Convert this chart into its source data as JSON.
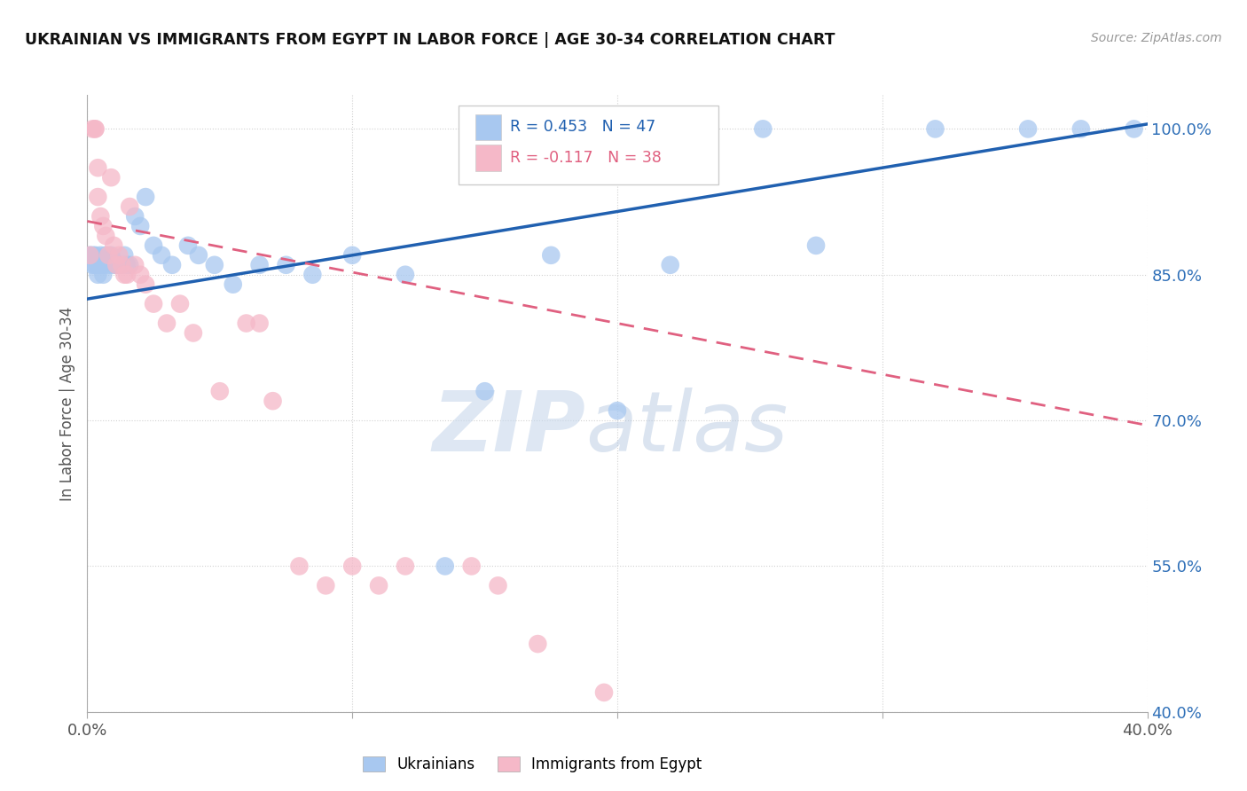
{
  "title": "UKRAINIAN VS IMMIGRANTS FROM EGYPT IN LABOR FORCE | AGE 30-34 CORRELATION CHART",
  "source": "Source: ZipAtlas.com",
  "ylabel": "In Labor Force | Age 30-34",
  "xlim": [
    0.0,
    0.4
  ],
  "ylim": [
    0.4,
    1.035
  ],
  "yticks": [
    0.4,
    0.55,
    0.7,
    0.85,
    1.0
  ],
  "ytick_labels": [
    "40.0%",
    "55.0%",
    "70.0%",
    "85.0%",
    "100.0%"
  ],
  "xticks": [
    0.0,
    0.1,
    0.2,
    0.3,
    0.4
  ],
  "xtick_labels": [
    "0.0%",
    "",
    "",
    "",
    "40.0%"
  ],
  "legend_blue_label": "Ukrainians",
  "legend_pink_label": "Immigrants from Egypt",
  "R_blue": 0.453,
  "N_blue": 47,
  "R_pink": -0.117,
  "N_pink": 38,
  "blue_color": "#a8c8f0",
  "pink_color": "#f5b8c8",
  "blue_line_color": "#2060b0",
  "pink_line_color": "#e06080",
  "watermark_zip": "ZIP",
  "watermark_atlas": "atlas",
  "blue_x": [
    0.001,
    0.002,
    0.002,
    0.003,
    0.003,
    0.004,
    0.004,
    0.005,
    0.005,
    0.006,
    0.006,
    0.007,
    0.008,
    0.009,
    0.01,
    0.011,
    0.012,
    0.013,
    0.014,
    0.015,
    0.016,
    0.018,
    0.02,
    0.022,
    0.025,
    0.028,
    0.032,
    0.038,
    0.042,
    0.048,
    0.055,
    0.065,
    0.075,
    0.085,
    0.1,
    0.12,
    0.135,
    0.15,
    0.175,
    0.2,
    0.22,
    0.255,
    0.275,
    0.32,
    0.355,
    0.375,
    0.395
  ],
  "blue_y": [
    0.87,
    0.87,
    0.86,
    0.87,
    0.86,
    0.86,
    0.85,
    0.87,
    0.86,
    0.86,
    0.85,
    0.87,
    0.86,
    0.87,
    0.86,
    0.86,
    0.86,
    0.86,
    0.87,
    0.86,
    0.86,
    0.91,
    0.9,
    0.93,
    0.88,
    0.87,
    0.86,
    0.88,
    0.87,
    0.86,
    0.84,
    0.86,
    0.86,
    0.85,
    0.87,
    0.85,
    0.55,
    0.73,
    0.87,
    0.71,
    0.86,
    1.0,
    0.88,
    1.0,
    1.0,
    1.0,
    1.0
  ],
  "pink_x": [
    0.001,
    0.002,
    0.003,
    0.003,
    0.004,
    0.004,
    0.005,
    0.006,
    0.007,
    0.008,
    0.009,
    0.01,
    0.011,
    0.012,
    0.013,
    0.014,
    0.015,
    0.016,
    0.018,
    0.02,
    0.022,
    0.025,
    0.03,
    0.035,
    0.04,
    0.05,
    0.06,
    0.065,
    0.07,
    0.08,
    0.09,
    0.1,
    0.11,
    0.12,
    0.145,
    0.155,
    0.17,
    0.195
  ],
  "pink_y": [
    0.87,
    1.0,
    1.0,
    1.0,
    0.96,
    0.93,
    0.91,
    0.9,
    0.89,
    0.87,
    0.95,
    0.88,
    0.86,
    0.87,
    0.86,
    0.85,
    0.85,
    0.92,
    0.86,
    0.85,
    0.84,
    0.82,
    0.8,
    0.82,
    0.79,
    0.73,
    0.8,
    0.8,
    0.72,
    0.55,
    0.53,
    0.55,
    0.53,
    0.55,
    0.55,
    0.53,
    0.47,
    0.42
  ],
  "blue_line_x": [
    0.0,
    0.4
  ],
  "blue_line_y": [
    0.825,
    1.005
  ],
  "pink_line_x": [
    0.0,
    0.4
  ],
  "pink_line_y": [
    0.905,
    0.695
  ]
}
